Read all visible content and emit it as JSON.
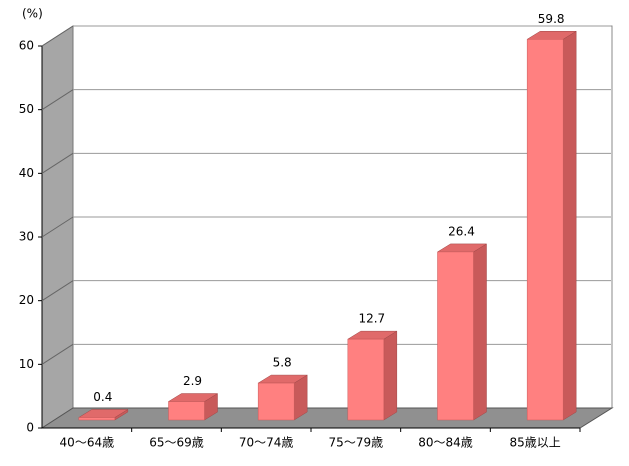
{
  "chart_data": {
    "type": "bar",
    "unit_label": "(%)",
    "categories": [
      "40～64歳",
      "65～69歳",
      "70～74歳",
      "75～79歳",
      "80～84歳",
      "85歳以上"
    ],
    "values": [
      0.4,
      2.9,
      5.8,
      12.7,
      26.4,
      59.8
    ],
    "color": "#ff8080",
    "ylim": [
      0,
      60
    ],
    "yticks": [
      0,
      10,
      20,
      30,
      40,
      50,
      60
    ],
    "grid": true
  }
}
